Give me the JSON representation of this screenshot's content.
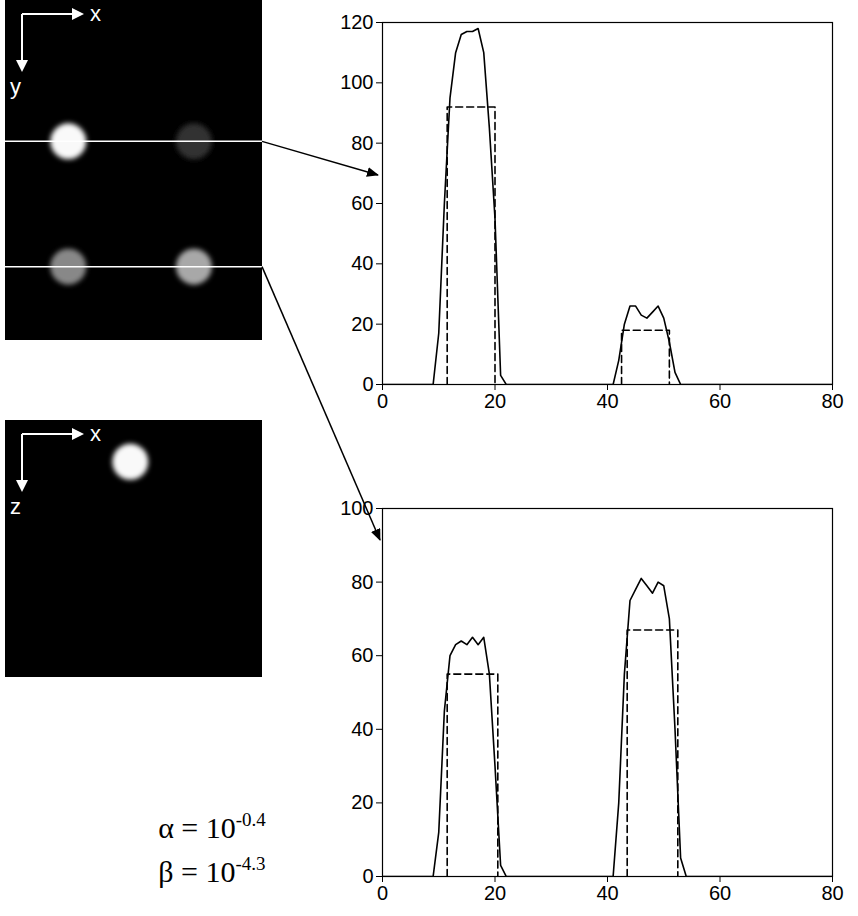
{
  "chart_data": [
    {
      "type": "line",
      "xlim": [
        0,
        80
      ],
      "xticks": [
        0,
        20,
        40,
        60,
        80
      ],
      "ylim": [
        0,
        120
      ],
      "yticks": [
        0,
        20,
        40,
        60,
        80,
        100,
        120
      ],
      "grid": false,
      "series": [
        {
          "color": "#000000",
          "line_style": "solid",
          "x": [
            0,
            9,
            10,
            11,
            12,
            13,
            14,
            15,
            16,
            17,
            18,
            19,
            20,
            21,
            22,
            41,
            42,
            43,
            44,
            45,
            46,
            47,
            48,
            49,
            50,
            51,
            52,
            53,
            80
          ],
          "values": [
            0,
            0,
            17,
            60,
            95,
            110,
            116,
            117,
            117,
            118,
            110,
            85,
            55,
            3,
            0,
            0,
            8,
            20,
            26,
            26,
            23,
            22,
            24,
            26,
            22,
            14,
            4,
            0,
            0
          ]
        },
        {
          "color": "#000000",
          "line_style": "dashed",
          "x": [
            11.5,
            11.5,
            20,
            20
          ],
          "values": [
            0,
            92,
            92,
            0
          ]
        },
        {
          "color": "#000000",
          "line_style": "dashed",
          "x": [
            42.5,
            42.5,
            51,
            51
          ],
          "values": [
            0,
            18,
            18,
            0
          ]
        }
      ]
    },
    {
      "type": "line",
      "xlim": [
        0,
        80
      ],
      "xticks": [
        0,
        20,
        40,
        60,
        80
      ],
      "ylim": [
        0,
        100
      ],
      "yticks": [
        0,
        20,
        40,
        60,
        80,
        100
      ],
      "grid": false,
      "series": [
        {
          "color": "#000000",
          "line_style": "solid",
          "x": [
            0,
            9,
            10,
            11,
            12,
            13,
            14,
            15,
            16,
            17,
            18,
            19,
            20,
            21,
            22,
            41,
            42,
            43,
            44,
            45,
            46,
            47,
            48,
            49,
            50,
            51,
            52,
            53,
            54,
            80
          ],
          "values": [
            0,
            0,
            12,
            45,
            60,
            63,
            64,
            63,
            65,
            63,
            65,
            55,
            30,
            3,
            0,
            0,
            20,
            55,
            75,
            78,
            81,
            79,
            77,
            80,
            79,
            70,
            40,
            5,
            0,
            0
          ]
        },
        {
          "color": "#000000",
          "line_style": "dashed",
          "x": [
            11.5,
            11.5,
            20.5,
            20.5
          ],
          "values": [
            0,
            55,
            55,
            0
          ]
        },
        {
          "color": "#000000",
          "line_style": "dashed",
          "x": [
            43.5,
            43.5,
            52.5,
            52.5
          ],
          "values": [
            0,
            67,
            67,
            0
          ]
        }
      ]
    }
  ],
  "images": [
    {
      "axes": [
        "x",
        "y"
      ],
      "intensity_range": [
        0,
        120
      ],
      "profile_lines": [
        44,
        83
      ],
      "blobs": [
        {
          "x": 19.7,
          "y": 44,
          "r": 5.6,
          "intensity": 117
        },
        {
          "x": 58.8,
          "y": 44,
          "r": 5.6,
          "intensity": 24
        },
        {
          "x": 19.7,
          "y": 83,
          "r": 5.6,
          "intensity": 64
        },
        {
          "x": 58.8,
          "y": 83,
          "r": 5.6,
          "intensity": 79
        }
      ]
    },
    {
      "axes": [
        "x",
        "z"
      ],
      "intensity_range": [
        0,
        120
      ],
      "profile_lines": [],
      "blobs": [
        {
          "x": 39,
          "y": 13,
          "r": 5.6,
          "intensity": 117
        }
      ]
    }
  ],
  "annotations": [
    {
      "text": "α = 10",
      "superscript": "-0.4"
    },
    {
      "text": "β = 10",
      "superscript": "-4.3"
    }
  ]
}
